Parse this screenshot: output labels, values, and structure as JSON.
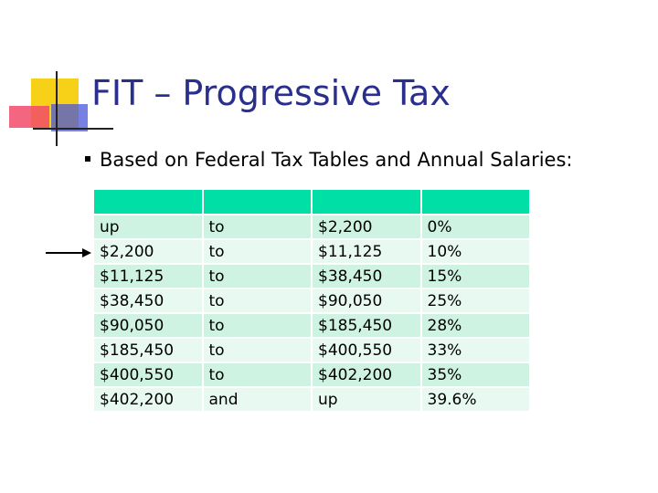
{
  "title": "FIT – Progressive Tax",
  "bullet": "Based on Federal Tax Tables and Annual Salaries:",
  "table": {
    "headers": [
      "",
      "",
      "",
      ""
    ],
    "rows": [
      [
        "up",
        "to",
        "$2,200",
        "0%"
      ],
      [
        "$2,200",
        "to",
        "$11,125",
        "10%"
      ],
      [
        "$11,125",
        "to",
        "$38,450",
        "15%"
      ],
      [
        "$38,450",
        "to",
        "$90,050",
        "25%"
      ],
      [
        "$90,050",
        "to",
        "$185,450",
        "28%"
      ],
      [
        "$185,450",
        "to",
        "$400,550",
        "33%"
      ],
      [
        "$400,550",
        "to",
        "$402,200",
        "35%"
      ],
      [
        "$402,200",
        "and",
        "up",
        "39.6%"
      ]
    ]
  },
  "colors": {
    "title": "#2b2f8c",
    "header_fill": "#00e0a6",
    "row_fill_dark": "#cef3e3",
    "row_fill_light": "#e7f9f1",
    "deco_yellow": "#f7d117",
    "deco_red": "#f24b6a",
    "deco_blue": "#4a56d9"
  },
  "icons": {
    "arrow": "right-arrow-icon",
    "bullet": "square-bullet-icon"
  }
}
